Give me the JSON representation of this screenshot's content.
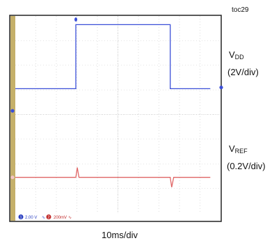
{
  "figure_id": "toc29",
  "chart_data": {
    "type": "line",
    "title": "",
    "xlabel": "10ms/div",
    "ylabel": "",
    "x_divisions": 10,
    "y_divisions": 8,
    "grid": true,
    "legend": "right",
    "colors": {
      "ch1": "#3a4fd8",
      "ch2": "#e06666",
      "grid": "#c8c8c8",
      "bezel": "#c5b06a"
    },
    "series": [
      {
        "name": "VDD",
        "name_main": "V",
        "name_sub": "DD",
        "scale": "(2V/div)",
        "units_per_div": 2,
        "unit": "V",
        "color": "#3a4fd8",
        "points": [
          [
            0,
            0
          ],
          [
            29.5,
            0
          ],
          [
            29.5,
            5.2
          ],
          [
            75.5,
            5.2
          ],
          [
            75.5,
            0
          ],
          [
            95,
            0
          ]
        ]
      },
      {
        "name": "VREF",
        "name_main": "V",
        "name_sub": "REF",
        "scale": "(0.2V/div)",
        "units_per_div": 0.2,
        "unit": "V",
        "color": "#e06666",
        "points": [
          [
            0,
            0
          ],
          [
            29.5,
            0
          ],
          [
            30.2,
            0.08
          ],
          [
            31.0,
            0
          ],
          [
            75.5,
            0
          ],
          [
            76.2,
            -0.08
          ],
          [
            77.2,
            0
          ],
          [
            95,
            0
          ]
        ]
      }
    ],
    "status_bar": {
      "ch1_number": "1",
      "ch1_setting": "2.00 V",
      "ch2_number": "2",
      "ch2_setting": "200mV"
    }
  }
}
